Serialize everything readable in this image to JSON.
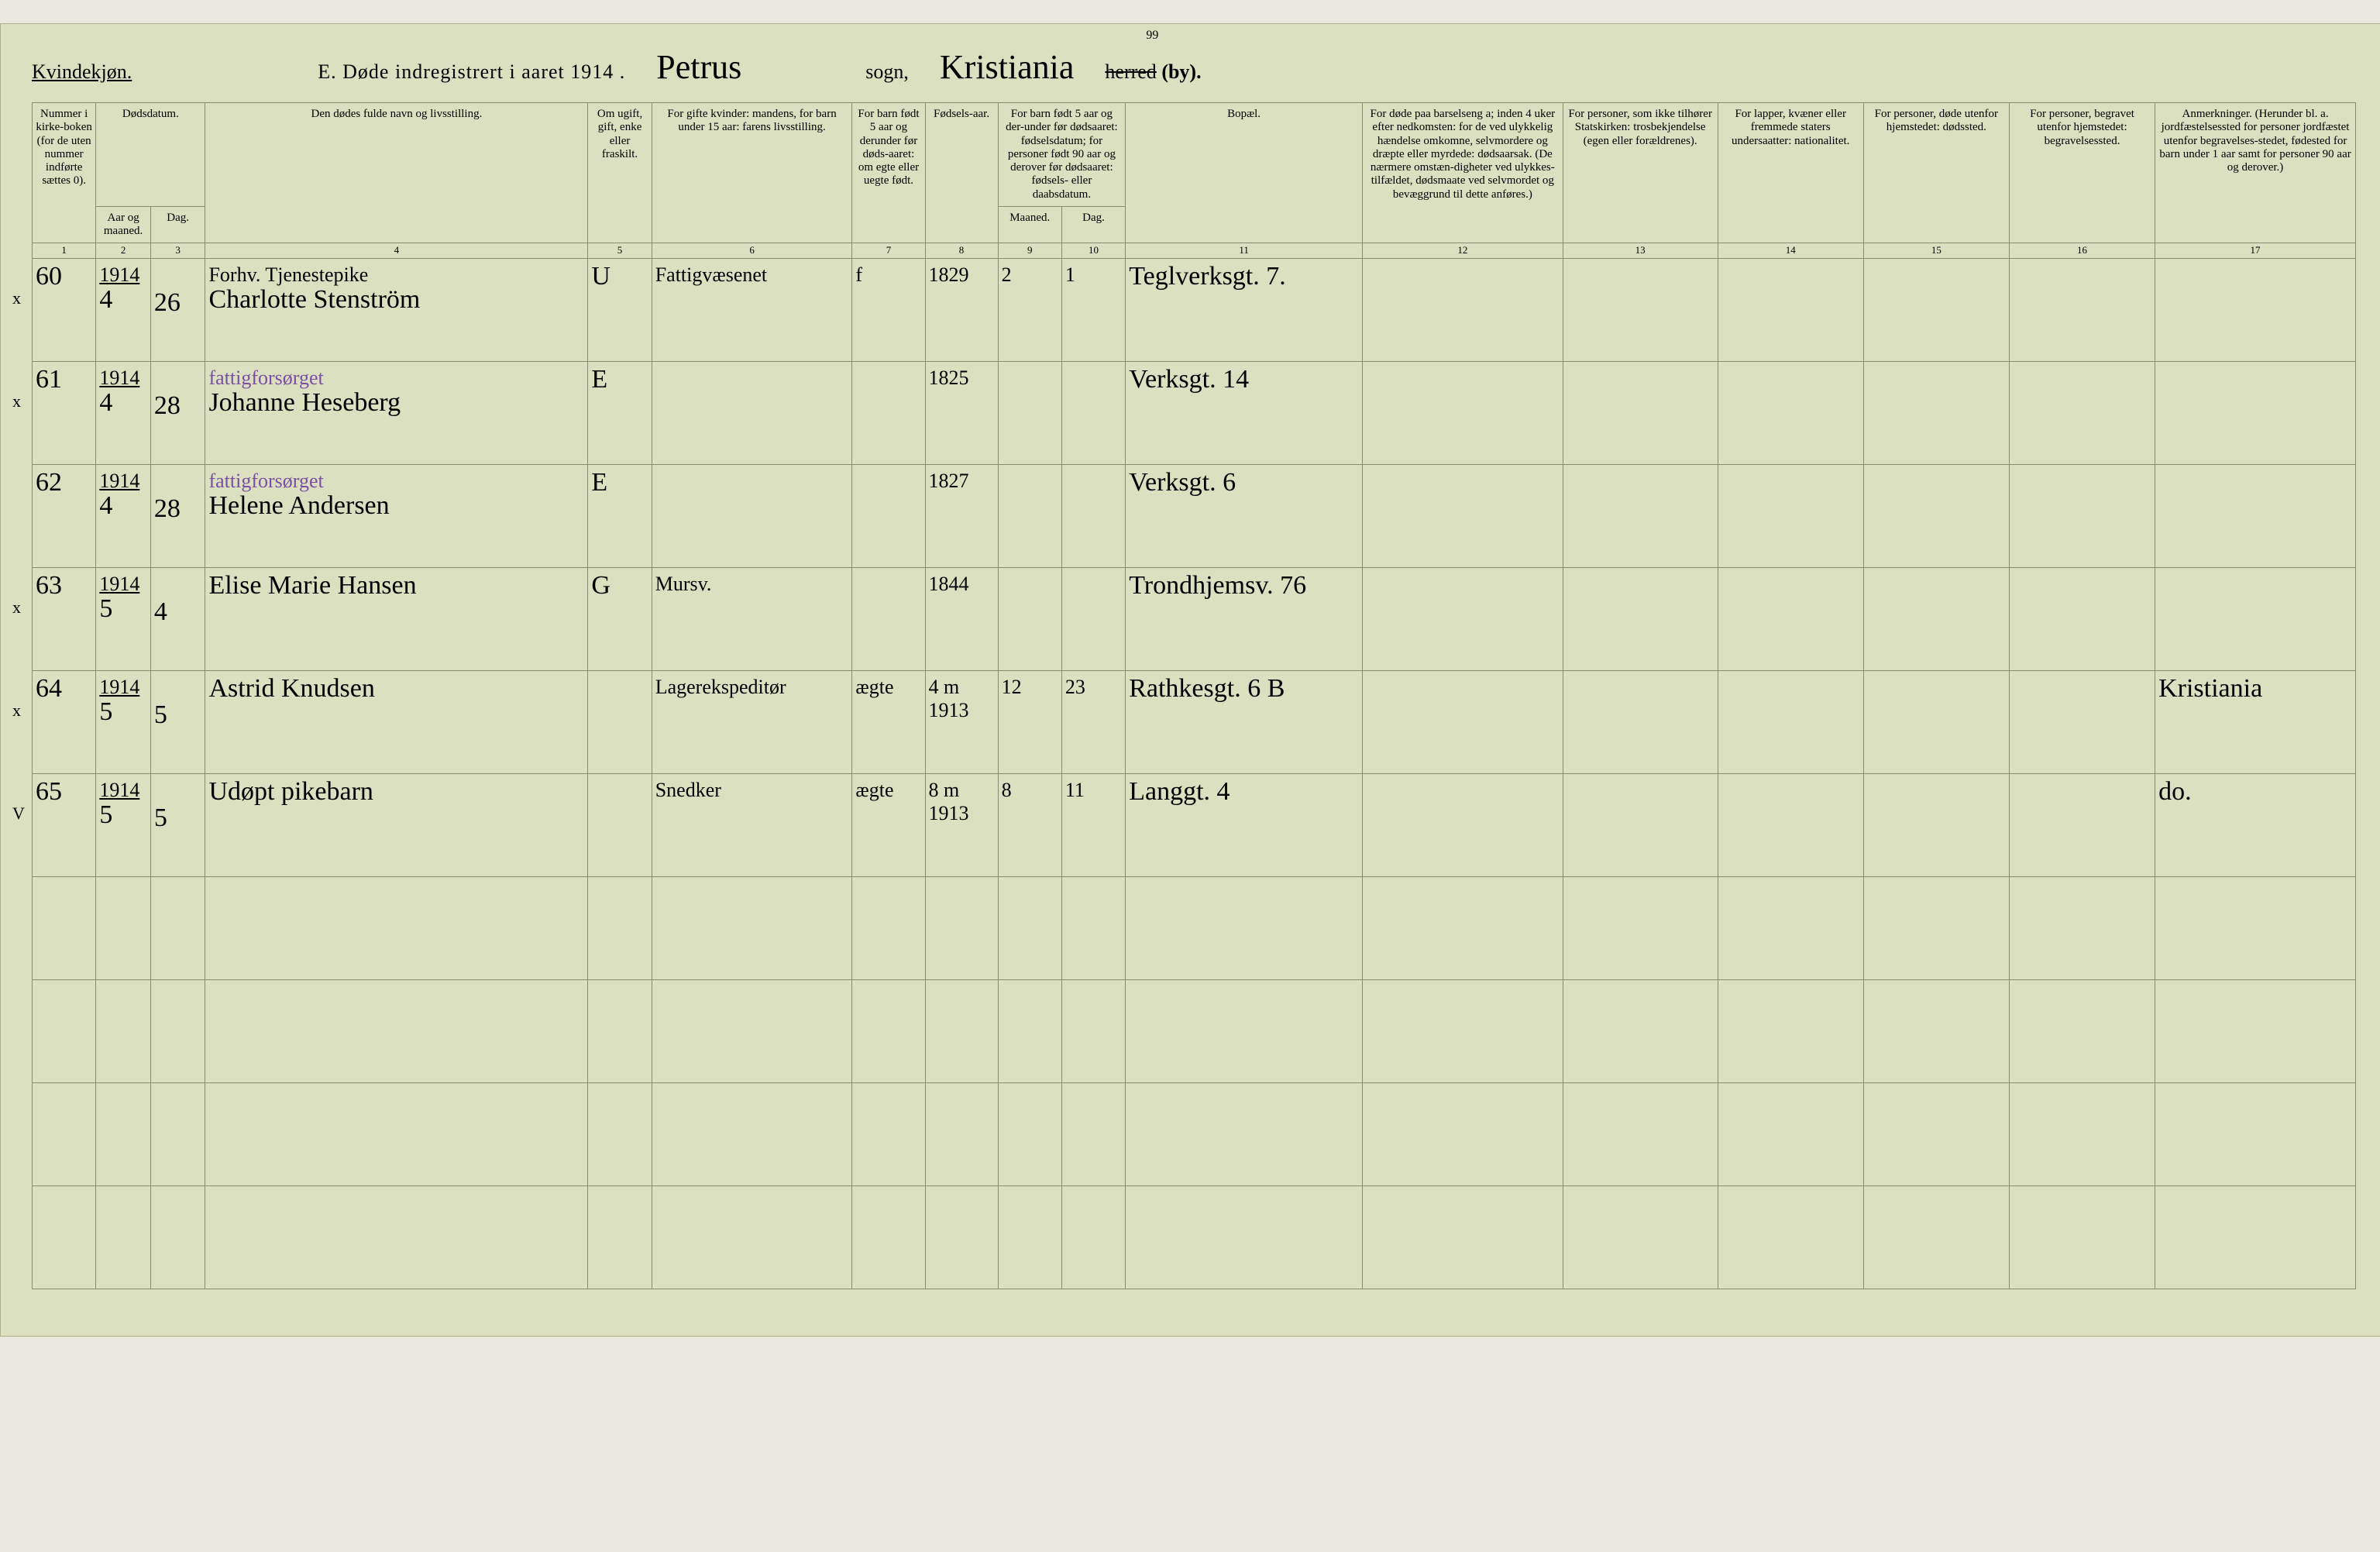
{
  "colors": {
    "paper": "#dbe0c0",
    "ink": "#3b3b30",
    "purple": "#7a4fa3",
    "rule": "#8a8a70"
  },
  "header": {
    "gender": "Kvindekjøn.",
    "title_prefix": "E.  Døde indregistrert i aaret 191",
    "year_suffix": "4",
    "parish": "Petrus",
    "page_no": "99",
    "sogn_label": "sogn,",
    "city": "Kristiania",
    "herred_struck": "herred",
    "by": "(by)."
  },
  "columns": {
    "1": "Nummer i kirke-boken (for de uten nummer indførte sættes 0).",
    "2": "Dødsdatum.",
    "2a": "Aar og maaned.",
    "2b": "Dag.",
    "4": "Den dødes fulde navn og livsstilling.",
    "5": "Om ugift, gift, enke eller fraskilt.",
    "6": "For gifte kvinder: mandens, for barn under 15 aar: farens livsstilling.",
    "7": "For barn født 5 aar og derunder før døds-aaret: om egte eller uegte født.",
    "8": "Fødsels-aar.",
    "9": "For barn født 5 aar og der-under før dødsaaret: fødselsdatum; for personer født 90 aar og derover før dødsaaret: fødsels- eller daabsdatum.",
    "9a": "Maaned.",
    "9b": "Dag.",
    "11": "Bopæl.",
    "12": "For døde paa barselseng a; inden 4 uker efter nedkomsten: for de ved ulykkelig hændelse omkomne, selvmordere og dræpte eller myrdede: dødsaarsak. (De nærmere omstæn-digheter ved ulykkes-tilfældet, dødsmaate ved selvmordet og bevæggrund til dette anføres.)",
    "13": "For personer, som ikke tilhører Statskirken: trosbekjendelse (egen eller forældrenes).",
    "14": "For lapper, kvæner eller fremmede staters undersaatter: nationalitet.",
    "15": "For personer, døde utenfor hjemstedet: dødssted.",
    "16": "For personer, begravet utenfor hjemstedet: begravelsessted.",
    "17": "Anmerkninger. (Herunder bl. a. jordfæstelsessted for personer jordfæstet utenfor begravelses-stedet, fødested for barn under 1 aar samt for personer 90 aar og derover.)"
  },
  "colnums": [
    "1",
    "2",
    "3",
    "4",
    "5",
    "6",
    "7",
    "8",
    "9",
    "10",
    "11",
    "12",
    "13",
    "14",
    "15",
    "16",
    "17"
  ],
  "rows": [
    {
      "mark": "x",
      "no": "60",
      "year": "1914",
      "month": "4",
      "day": "26",
      "name_line1": "Forhv. Tjenestepike",
      "name_line2": "Charlotte Stenström",
      "status": "U",
      "col6": "Fattigvæsenet",
      "col7": "f",
      "birth": "1829",
      "m": "2",
      "d": "1",
      "bopael": "Teglverksgt. 7."
    },
    {
      "mark": "x",
      "no": "61",
      "year": "1914",
      "month": "4",
      "day": "28",
      "name_line1_purple": "fattigforsørget",
      "name_line2": "Johanne Heseberg",
      "status": "E",
      "col6": "",
      "col7": "",
      "birth": "1825",
      "m": "",
      "d": "",
      "bopael": "Verksgt. 14"
    },
    {
      "mark": "",
      "no": "62",
      "year": "1914",
      "month": "4",
      "day": "28",
      "name_line1_purple": "fattigforsørget",
      "name_line2": "Helene Andersen",
      "status": "E",
      "col6": "",
      "col7": "",
      "birth": "1827",
      "m": "",
      "d": "",
      "bopael": "Verksgt. 6"
    },
    {
      "mark": "x",
      "no": "63",
      "year": "1914",
      "month": "5",
      "day": "4",
      "name_line1": "",
      "name_line2": "Elise Marie Hansen",
      "status": "G",
      "col6": "Mursv.",
      "col7": "",
      "birth": "1844",
      "m": "",
      "d": "",
      "bopael": "Trondhjemsv. 76"
    },
    {
      "mark": "x",
      "no": "64",
      "year": "1914",
      "month": "5",
      "day": "5",
      "name_line1": "",
      "name_line2": "Astrid Knudsen",
      "status": "",
      "col6": "Lagerekspeditør",
      "col7": "ægte",
      "birth": "1913",
      "age_note": "4 m",
      "m": "12",
      "d": "23",
      "bopael": "Rathkesgt. 6 B",
      "anm": "Kristiania"
    },
    {
      "mark": "V",
      "no": "65",
      "year": "1914",
      "month": "5",
      "day": "5",
      "name_line1": "",
      "name_line2": "Udøpt pikebarn",
      "status": "",
      "col6": "Snedker",
      "col7": "ægte",
      "birth": "1913",
      "age_note": "8 m",
      "m": "8",
      "d": "11",
      "bopael": "Langgt. 4",
      "anm": "do."
    }
  ],
  "blank_rows": 4
}
